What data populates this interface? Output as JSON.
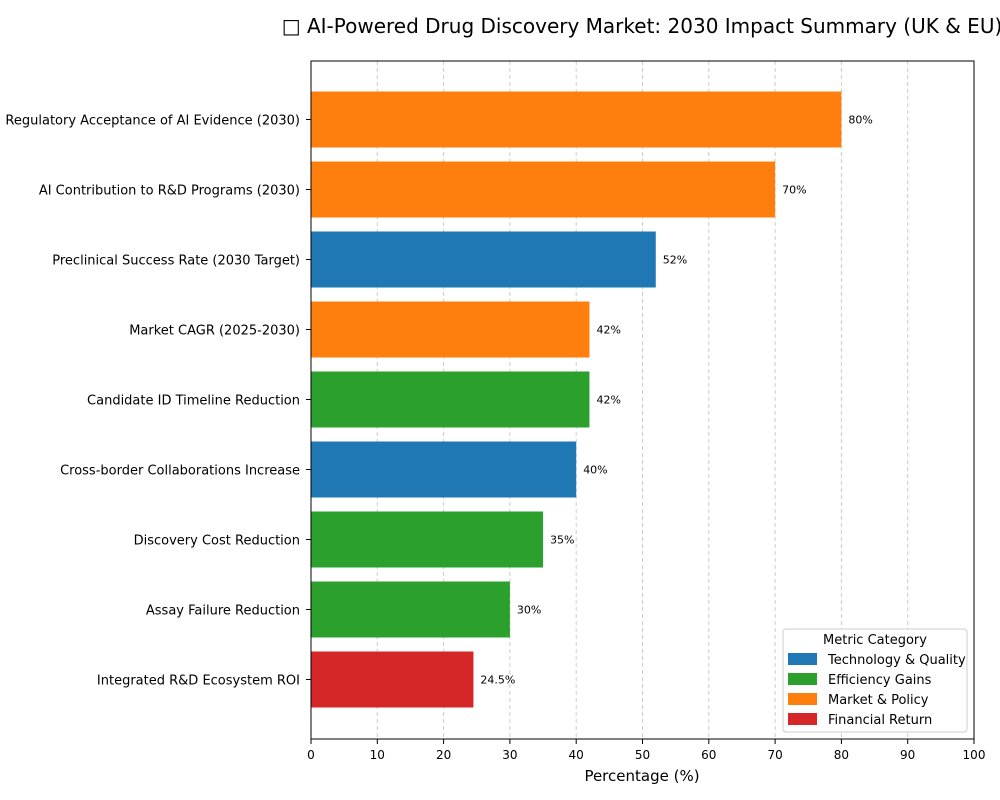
{
  "chart_data": {
    "type": "bar",
    "orientation": "horizontal",
    "title": "□ AI-Powered Drug Discovery Market: 2030 Impact Summary (UK & EU)",
    "xlabel": "Percentage (%)",
    "ylabel": "",
    "xlim": [
      0,
      100
    ],
    "xticks": [
      0,
      10,
      20,
      30,
      40,
      50,
      60,
      70,
      80,
      90,
      100
    ],
    "grid": "x-dashed",
    "categories": [
      "Regulatory Acceptance of AI Evidence (2030)",
      "AI Contribution to R&D Programs (2030)",
      "Preclinical Success Rate (2030 Target)",
      "Market CAGR (2025-2030)",
      "Candidate ID Timeline Reduction",
      "Cross-border Collaborations Increase",
      "Discovery Cost Reduction",
      "Assay Failure Reduction",
      "Integrated R&D Ecosystem ROI"
    ],
    "values": [
      80,
      70,
      52,
      42,
      42,
      40,
      35,
      30,
      24.5
    ],
    "data_labels": [
      "80%",
      "70%",
      "52%",
      "42%",
      "42%",
      "40%",
      "35%",
      "30%",
      "24.5%"
    ],
    "bar_categories": [
      "Market & Policy",
      "Market & Policy",
      "Technology & Quality",
      "Market & Policy",
      "Efficiency Gains",
      "Technology & Quality",
      "Efficiency Gains",
      "Efficiency Gains",
      "Financial Return"
    ],
    "legend": {
      "title": "Metric Category",
      "placement": "bottom-right",
      "entries": [
        {
          "label": "Technology & Quality",
          "color": "#1f77b4"
        },
        {
          "label": "Efficiency Gains",
          "color": "#2ca02c"
        },
        {
          "label": "Market & Policy",
          "color": "#ff7f0e"
        },
        {
          "label": "Financial Return",
          "color": "#d62728"
        }
      ]
    }
  }
}
